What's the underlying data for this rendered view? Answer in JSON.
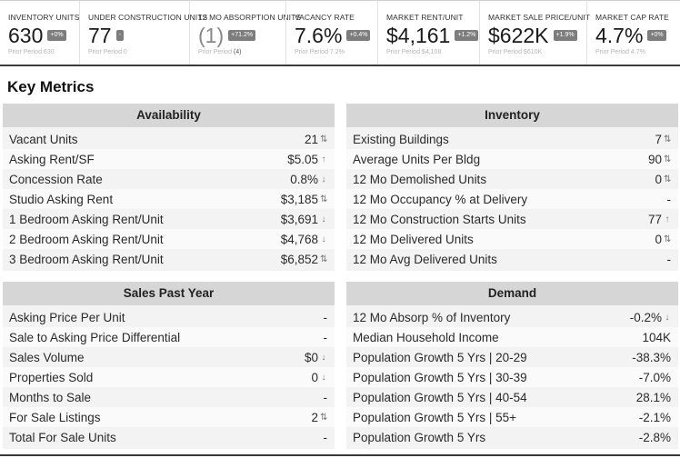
{
  "kpis": [
    {
      "label": "INVENTORY UNITS",
      "value": "630",
      "badge": "+0%",
      "prior_label": "Prior Period",
      "prior_value": "630"
    },
    {
      "label": "UNDER CONSTRUCTION UNITS",
      "value": "77",
      "badge": "-",
      "prior_label": "Prior Period",
      "prior_value": "0"
    },
    {
      "label": "12 MO ABSORPTION UNITS",
      "value": "(1)",
      "badge": "+71.2%",
      "prior_label": "Prior Period",
      "prior_value": "(4)"
    },
    {
      "label": "VACANCY RATE",
      "value": "7.6%",
      "badge": "+0.4%",
      "prior_label": "Prior Period",
      "prior_value": "7.2%"
    },
    {
      "label": "MARKET RENT/UNIT",
      "value": "$4,161",
      "badge": "+1.2%",
      "prior_label": "Prior Period",
      "prior_value": "$4,108"
    },
    {
      "label": "MARKET SALE PRICE/UNIT",
      "value": "$622K",
      "badge": "+1.9%",
      "prior_label": "Prior Period",
      "prior_value": "$610K"
    },
    {
      "label": "MARKET CAP RATE",
      "value": "4.7%",
      "badge": "+0%",
      "prior_label": "Prior Period",
      "prior_value": "4.7%"
    }
  ],
  "section_title": "Key Metrics",
  "panels": {
    "availability": {
      "title": "Availability",
      "rows": [
        {
          "label": "Vacant Units",
          "value": "21",
          "trend": "up-down-icon"
        },
        {
          "label": "Asking Rent/SF",
          "value": "$5.05",
          "trend": "up-arrow-icon"
        },
        {
          "label": "Concession Rate",
          "value": "0.8%",
          "trend": "down-arrow-icon"
        },
        {
          "label": "Studio Asking Rent",
          "value": "$3,185",
          "trend": "up-down-icon"
        },
        {
          "label": "1 Bedroom Asking Rent/Unit",
          "value": "$3,691",
          "trend": "down-arrow-icon"
        },
        {
          "label": "2 Bedroom Asking Rent/Unit",
          "value": "$4,768",
          "trend": "down-arrow-icon"
        },
        {
          "label": "3 Bedroom Asking Rent/Unit",
          "value": "$6,852",
          "trend": "up-down-icon"
        }
      ]
    },
    "inventory": {
      "title": "Inventory",
      "rows": [
        {
          "label": "Existing Buildings",
          "value": "7",
          "trend": "up-down-icon"
        },
        {
          "label": "Average Units Per Bldg",
          "value": "90",
          "trend": "up-down-icon"
        },
        {
          "label": "12 Mo Demolished Units",
          "value": "0",
          "trend": "up-down-icon"
        },
        {
          "label": "12 Mo Occupancy % at Delivery",
          "value": "-",
          "trend": ""
        },
        {
          "label": "12 Mo Construction Starts Units",
          "value": "77",
          "trend": "up-arrow-icon"
        },
        {
          "label": "12 Mo Delivered Units",
          "value": "0",
          "trend": "up-down-icon"
        },
        {
          "label": "12 Mo Avg Delivered Units",
          "value": "-",
          "trend": ""
        }
      ]
    },
    "sales": {
      "title": "Sales Past Year",
      "rows": [
        {
          "label": "Asking Price Per Unit",
          "value": "-",
          "trend": ""
        },
        {
          "label": "Sale to Asking Price Differential",
          "value": "-",
          "trend": ""
        },
        {
          "label": "Sales Volume",
          "value": "$0",
          "trend": "down-arrow-icon"
        },
        {
          "label": "Properties Sold",
          "value": "0",
          "trend": "down-arrow-icon"
        },
        {
          "label": "Months to Sale",
          "value": "-",
          "trend": ""
        },
        {
          "label": "For Sale Listings",
          "value": "2",
          "trend": "up-down-icon"
        },
        {
          "label": "Total For Sale Units",
          "value": "-",
          "trend": ""
        }
      ]
    },
    "demand": {
      "title": "Demand",
      "rows": [
        {
          "label": "12 Mo Absorp % of Inventory",
          "value": "-0.2%",
          "trend": "down-arrow-icon"
        },
        {
          "label": "Median Household Income",
          "value": "104K",
          "trend": ""
        },
        {
          "label": "Population Growth 5 Yrs | 20-29",
          "value": "-38.3%",
          "trend": ""
        },
        {
          "label": "Population Growth 5 Yrs | 30-39",
          "value": "-7.0%",
          "trend": ""
        },
        {
          "label": "Population Growth 5 Yrs | 40-54",
          "value": "28.1%",
          "trend": ""
        },
        {
          "label": "Population Growth 5 Yrs | 55+",
          "value": "-2.1%",
          "trend": ""
        },
        {
          "label": "Population Growth 5 Yrs",
          "value": "-2.8%",
          "trend": ""
        }
      ]
    }
  }
}
